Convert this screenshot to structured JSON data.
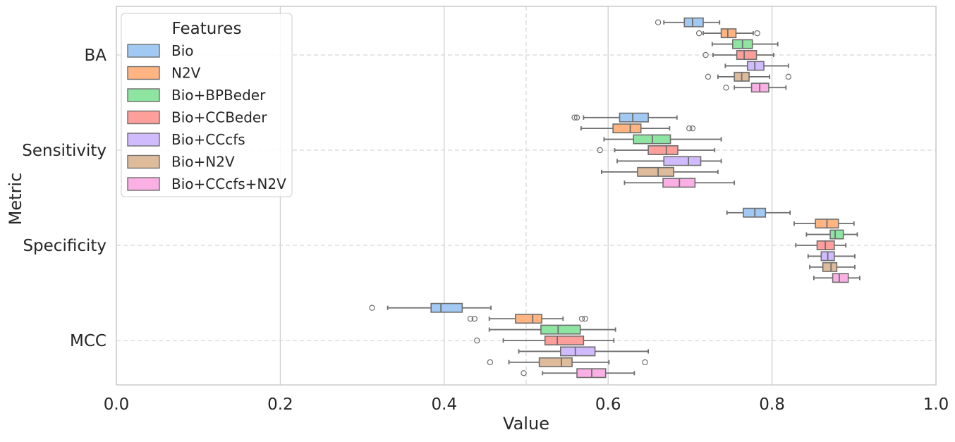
{
  "chart_data": {
    "type": "boxplot",
    "orientation": "horizontal",
    "xlabel": "Value",
    "ylabel": "Metric",
    "xlim": [
      0.0,
      1.0
    ],
    "x_ticks": [
      "0.0",
      "0.2",
      "0.4",
      "0.6",
      "0.8",
      "1.0"
    ],
    "categories": [
      "BA",
      "Sensitivity",
      "Specificity",
      "MCC"
    ],
    "grid": true,
    "legend": {
      "title": "Features",
      "position": "top-left"
    },
    "series": [
      {
        "name": "Bio",
        "color": "#a1c9f4",
        "boxes": [
          {
            "whislo": 0.668,
            "q1": 0.693,
            "med": 0.703,
            "q3": 0.716,
            "whishi": 0.736,
            "fliers": [
              0.661
            ]
          },
          {
            "whislo": 0.57,
            "q1": 0.614,
            "med": 0.63,
            "q3": 0.649,
            "whishi": 0.684,
            "fliers": [
              0.559,
              0.562
            ]
          },
          {
            "whislo": 0.745,
            "q1": 0.765,
            "med": 0.779,
            "q3": 0.792,
            "whishi": 0.822,
            "fliers": []
          },
          {
            "whislo": 0.331,
            "q1": 0.384,
            "med": 0.396,
            "q3": 0.422,
            "whishi": 0.457,
            "fliers": [
              0.312
            ]
          }
        ]
      },
      {
        "name": "N2V",
        "color": "#ffb482",
        "boxes": [
          {
            "whislo": 0.716,
            "q1": 0.738,
            "med": 0.746,
            "q3": 0.756,
            "whishi": 0.777,
            "fliers": [
              0.711,
              0.782
            ]
          },
          {
            "whislo": 0.567,
            "q1": 0.606,
            "med": 0.627,
            "q3": 0.64,
            "whishi": 0.675,
            "fliers": [
              0.699,
              0.703
            ]
          },
          {
            "whislo": 0.827,
            "q1": 0.853,
            "med": 0.867,
            "q3": 0.881,
            "whishi": 0.9,
            "fliers": []
          },
          {
            "whislo": 0.455,
            "q1": 0.487,
            "med": 0.508,
            "q3": 0.519,
            "whishi": 0.545,
            "fliers": [
              0.432,
              0.437,
              0.568,
              0.572
            ]
          }
        ]
      },
      {
        "name": "Bio+BPBeder",
        "color": "#8de5a1",
        "boxes": [
          {
            "whislo": 0.727,
            "q1": 0.752,
            "med": 0.764,
            "q3": 0.776,
            "whishi": 0.807,
            "fliers": []
          },
          {
            "whislo": 0.595,
            "q1": 0.631,
            "med": 0.654,
            "q3": 0.676,
            "whishi": 0.738,
            "fliers": []
          },
          {
            "whislo": 0.842,
            "q1": 0.871,
            "med": 0.877,
            "q3": 0.887,
            "whishi": 0.904,
            "fliers": []
          },
          {
            "whislo": 0.455,
            "q1": 0.518,
            "med": 0.539,
            "q3": 0.566,
            "whishi": 0.609,
            "fliers": []
          }
        ]
      },
      {
        "name": "Bio+CCBeder",
        "color": "#ff9f9b",
        "boxes": [
          {
            "whislo": 0.728,
            "q1": 0.757,
            "med": 0.766,
            "q3": 0.781,
            "whishi": 0.802,
            "fliers": [
              0.719
            ]
          },
          {
            "whislo": 0.608,
            "q1": 0.649,
            "med": 0.671,
            "q3": 0.685,
            "whishi": 0.73,
            "fliers": [
              0.59
            ]
          },
          {
            "whislo": 0.829,
            "q1": 0.855,
            "med": 0.865,
            "q3": 0.876,
            "whishi": 0.89,
            "fliers": []
          },
          {
            "whislo": 0.472,
            "q1": 0.523,
            "med": 0.538,
            "q3": 0.57,
            "whishi": 0.607,
            "fliers": [
              0.44
            ]
          }
        ]
      },
      {
        "name": "Bio+CCcfs",
        "color": "#d0bbff",
        "boxes": [
          {
            "whislo": 0.743,
            "q1": 0.77,
            "med": 0.779,
            "q3": 0.79,
            "whishi": 0.82,
            "fliers": []
          },
          {
            "whislo": 0.611,
            "q1": 0.668,
            "med": 0.698,
            "q3": 0.713,
            "whishi": 0.738,
            "fliers": []
          },
          {
            "whislo": 0.844,
            "q1": 0.86,
            "med": 0.868,
            "q3": 0.876,
            "whishi": 0.901,
            "fliers": []
          },
          {
            "whislo": 0.491,
            "q1": 0.542,
            "med": 0.56,
            "q3": 0.584,
            "whishi": 0.649,
            "fliers": []
          }
        ]
      },
      {
        "name": "Bio+N2V",
        "color": "#debb9b",
        "boxes": [
          {
            "whislo": 0.734,
            "q1": 0.754,
            "med": 0.763,
            "q3": 0.772,
            "whishi": 0.797,
            "fliers": [
              0.722,
              0.82
            ]
          },
          {
            "whislo": 0.592,
            "q1": 0.636,
            "med": 0.661,
            "q3": 0.68,
            "whishi": 0.734,
            "fliers": []
          },
          {
            "whislo": 0.846,
            "q1": 0.862,
            "med": 0.872,
            "q3": 0.879,
            "whishi": 0.901,
            "fliers": []
          },
          {
            "whislo": 0.479,
            "q1": 0.516,
            "med": 0.543,
            "q3": 0.556,
            "whishi": 0.601,
            "fliers": [
              0.456,
              0.645
            ]
          }
        ]
      },
      {
        "name": "Bio+CCcfs+N2V",
        "color": "#fab0e4",
        "boxes": [
          {
            "whislo": 0.754,
            "q1": 0.775,
            "med": 0.785,
            "q3": 0.796,
            "whishi": 0.817,
            "fliers": [
              0.744
            ]
          },
          {
            "whislo": 0.62,
            "q1": 0.667,
            "med": 0.687,
            "q3": 0.706,
            "whishi": 0.754,
            "fliers": []
          },
          {
            "whislo": 0.851,
            "q1": 0.874,
            "med": 0.882,
            "q3": 0.893,
            "whishi": 0.907,
            "fliers": []
          },
          {
            "whislo": 0.52,
            "q1": 0.562,
            "med": 0.58,
            "q3": 0.597,
            "whishi": 0.632,
            "fliers": [
              0.497
            ]
          }
        ]
      }
    ]
  }
}
